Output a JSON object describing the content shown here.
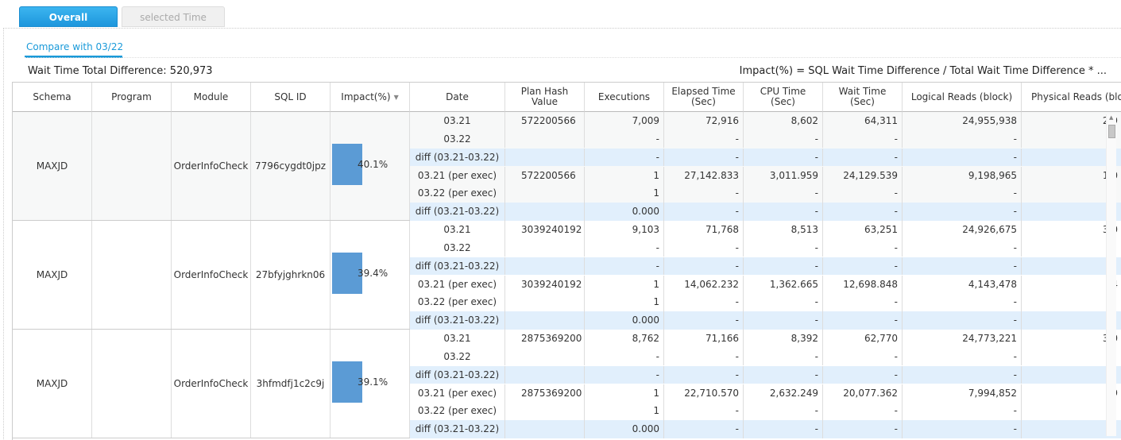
{
  "tabs": [
    {
      "label": "Overall",
      "active": true
    },
    {
      "label": "selected Time",
      "active": false
    }
  ],
  "subtab": {
    "label": "Compare with 03/22"
  },
  "summary": {
    "label": "Wait Time Total Difference: 520,973"
  },
  "formula": {
    "text": "Impact(%) = SQL Wait Time Difference / Total Wait Time Difference * ..."
  },
  "columns": {
    "schema": "Schema",
    "program": "Program",
    "module": "Module",
    "sqlid": "SQL ID",
    "impact": "Impact(%)",
    "date": "Date",
    "plan": "Plan Hash\nValue",
    "executions": "Executions",
    "elapsed": "Elapsed Time\n(Sec)",
    "cpu": "CPU Time\n(Sec)",
    "wait": "Wait Time\n(Sec)",
    "logical": "Logical Reads (block)",
    "physical": "Physical Reads (blo"
  },
  "sort_icon": "sort-desc-icon",
  "colors": {
    "accent": "#1a9ad9",
    "bar": "#5b9bd5",
    "diff_row": "#e1effc"
  },
  "groups": [
    {
      "schema": "MAXJD",
      "program": "",
      "module": "OrderInfoCheck",
      "sqlid": "7796cygdt0jpz",
      "impact": "40.1%",
      "impact_pct": 40.1,
      "rows": [
        {
          "date": "03.21",
          "plan": "572200566",
          "exec": "7,009",
          "elapsed": "72,916",
          "cpu": "8,602",
          "wait": "64,311",
          "logical": "24,955,938",
          "physical": "2,9",
          "diff": false
        },
        {
          "date": "03.22",
          "plan": "",
          "exec": "-",
          "elapsed": "-",
          "cpu": "-",
          "wait": "-",
          "logical": "-",
          "physical": "",
          "diff": false
        },
        {
          "date": "diff (03.21-03.22)",
          "plan": "",
          "exec": "-",
          "elapsed": "-",
          "cpu": "-",
          "wait": "-",
          "logical": "-",
          "physical": "",
          "diff": true
        },
        {
          "date": "03.21 (per exec)",
          "plan": "572200566",
          "exec": "1",
          "elapsed": "27,142.833",
          "cpu": "3,011.959",
          "wait": "24,129.539",
          "logical": "9,198,965",
          "physical": "1,0",
          "diff": false
        },
        {
          "date": "03.22 (per exec)",
          "plan": "",
          "exec": "1",
          "elapsed": "-",
          "cpu": "-",
          "wait": "-",
          "logical": "-",
          "physical": "",
          "diff": false
        },
        {
          "date": "diff (03.21-03.22)",
          "plan": "",
          "exec": "0.000",
          "elapsed": "-",
          "cpu": "-",
          "wait": "-",
          "logical": "-",
          "physical": "",
          "diff": true
        }
      ]
    },
    {
      "schema": "MAXJD",
      "program": "",
      "module": "OrderInfoCheck",
      "sqlid": "27bfyjghrkn06",
      "impact": "39.4%",
      "impact_pct": 39.4,
      "rows": [
        {
          "date": "03.21",
          "plan": "3039240192",
          "exec": "9,103",
          "elapsed": "71,768",
          "cpu": "8,513",
          "wait": "63,251",
          "logical": "24,926,675",
          "physical": "3,0",
          "diff": false
        },
        {
          "date": "03.22",
          "plan": "",
          "exec": "-",
          "elapsed": "-",
          "cpu": "-",
          "wait": "-",
          "logical": "-",
          "physical": "",
          "diff": false
        },
        {
          "date": "diff (03.21-03.22)",
          "plan": "",
          "exec": "-",
          "elapsed": "-",
          "cpu": "-",
          "wait": "-",
          "logical": "-",
          "physical": "",
          "diff": true
        },
        {
          "date": "03.21 (per exec)",
          "plan": "3039240192",
          "exec": "1",
          "elapsed": "14,062.232",
          "cpu": "1,362.665",
          "wait": "12,698.848",
          "logical": "4,143,478",
          "physical": "4",
          "diff": false
        },
        {
          "date": "03.22 (per exec)",
          "plan": "",
          "exec": "1",
          "elapsed": "-",
          "cpu": "-",
          "wait": "-",
          "logical": "-",
          "physical": "",
          "diff": false
        },
        {
          "date": "diff (03.21-03.22)",
          "plan": "",
          "exec": "0.000",
          "elapsed": "-",
          "cpu": "-",
          "wait": "-",
          "logical": "-",
          "physical": "",
          "diff": true
        }
      ]
    },
    {
      "schema": "MAXJD",
      "program": "",
      "module": "OrderInfoCheck",
      "sqlid": "3hfmdfj1c2c9j",
      "impact": "39.1%",
      "impact_pct": 39.1,
      "rows": [
        {
          "date": "03.21",
          "plan": "2875369200",
          "exec": "8,762",
          "elapsed": "71,166",
          "cpu": "8,392",
          "wait": "62,770",
          "logical": "24,773,221",
          "physical": "3,0",
          "diff": false
        },
        {
          "date": "03.22",
          "plan": "",
          "exec": "-",
          "elapsed": "-",
          "cpu": "-",
          "wait": "-",
          "logical": "-",
          "physical": "",
          "diff": false
        },
        {
          "date": "diff (03.21-03.22)",
          "plan": "",
          "exec": "-",
          "elapsed": "-",
          "cpu": "-",
          "wait": "-",
          "logical": "-",
          "physical": "",
          "diff": true
        },
        {
          "date": "03.21 (per exec)",
          "plan": "2875369200",
          "exec": "1",
          "elapsed": "22,710.570",
          "cpu": "2,632.249",
          "wait": "20,077.362",
          "logical": "7,994,852",
          "physical": "9",
          "diff": false
        },
        {
          "date": "03.22 (per exec)",
          "plan": "",
          "exec": "1",
          "elapsed": "-",
          "cpu": "-",
          "wait": "-",
          "logical": "-",
          "physical": "",
          "diff": false
        },
        {
          "date": "diff (03.21-03.22)",
          "plan": "",
          "exec": "0.000",
          "elapsed": "-",
          "cpu": "-",
          "wait": "-",
          "logical": "-",
          "physical": "",
          "diff": true
        }
      ]
    }
  ]
}
